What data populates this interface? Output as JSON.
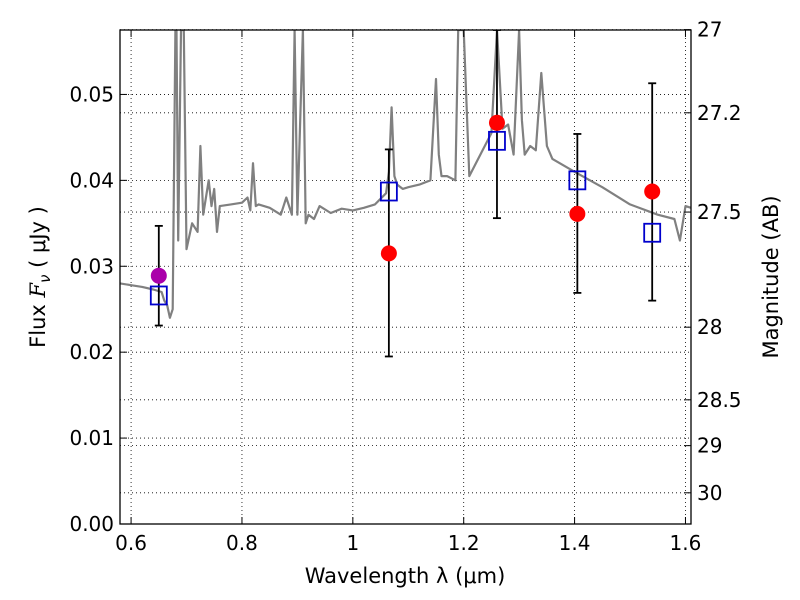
{
  "chart_data": {
    "type": "scatter",
    "title": "",
    "xlabel": "Wavelength  λ (μm)",
    "ylabel": "Flux  F_ν  ( μJy )",
    "ylabel_parts": {
      "prefix": "Flux  ",
      "symbol": "F",
      "sub": "ν",
      "suffix": "  ( μJy )"
    },
    "y2label": "Magnitude (AB)",
    "xlim": [
      0.58,
      1.61
    ],
    "ylim": [
      0.0,
      0.0575
    ],
    "grid": true,
    "x_ticks": [
      {
        "value": 0.6,
        "label": "0.6"
      },
      {
        "value": 0.8,
        "label": "0.8"
      },
      {
        "value": 1.0,
        "label": "1"
      },
      {
        "value": 1.2,
        "label": "1.2"
      },
      {
        "value": 1.4,
        "label": "1.4"
      },
      {
        "value": 1.6,
        "label": "1.6"
      }
    ],
    "y_ticks": [
      {
        "value": 0.0,
        "label": "0.00"
      },
      {
        "value": 0.01,
        "label": "0.01"
      },
      {
        "value": 0.02,
        "label": "0.02"
      },
      {
        "value": 0.03,
        "label": "0.03"
      },
      {
        "value": 0.04,
        "label": "0.04"
      },
      {
        "value": 0.05,
        "label": "0.05"
      }
    ],
    "y2_ticks": [
      {
        "value": 27.0,
        "label": "27"
      },
      {
        "value": 27.2,
        "label": "27.2"
      },
      {
        "value": 27.5,
        "label": "27.5"
      },
      {
        "value": 28.0,
        "label": "28"
      },
      {
        "value": 28.5,
        "label": "28.5"
      },
      {
        "value": 29.0,
        "label": "29"
      },
      {
        "value": 30.0,
        "label": "30"
      }
    ],
    "series": [
      {
        "kind": "spectrum",
        "color": "#808080",
        "x": [
          0.58,
          0.6,
          0.62,
          0.64,
          0.655,
          0.66,
          0.665,
          0.67,
          0.675,
          0.68,
          0.682,
          0.685,
          0.69,
          0.695,
          0.7,
          0.71,
          0.72,
          0.725,
          0.73,
          0.74,
          0.745,
          0.75,
          0.755,
          0.76,
          0.78,
          0.8,
          0.81,
          0.815,
          0.82,
          0.825,
          0.83,
          0.85,
          0.87,
          0.88,
          0.89,
          0.895,
          0.9,
          0.91,
          0.915,
          0.92,
          0.93,
          0.94,
          0.96,
          0.98,
          1.0,
          1.02,
          1.04,
          1.06,
          1.065,
          1.07,
          1.075,
          1.08,
          1.09,
          1.1,
          1.12,
          1.14,
          1.15,
          1.155,
          1.16,
          1.17,
          1.185,
          1.19,
          1.2,
          1.21,
          1.25,
          1.26,
          1.27,
          1.28,
          1.29,
          1.3,
          1.305,
          1.31,
          1.32,
          1.33,
          1.34,
          1.35,
          1.36,
          1.4,
          1.45,
          1.5,
          1.55,
          1.58,
          1.59,
          1.6,
          1.61
        ],
        "y": [
          0.028,
          0.0278,
          0.0276,
          0.0273,
          0.027,
          0.026,
          0.0255,
          0.024,
          0.025,
          0.0575,
          0.0575,
          0.033,
          0.0575,
          0.0575,
          0.032,
          0.035,
          0.034,
          0.044,
          0.036,
          0.04,
          0.037,
          0.039,
          0.034,
          0.037,
          0.0372,
          0.0374,
          0.038,
          0.0365,
          0.042,
          0.037,
          0.0372,
          0.0368,
          0.036,
          0.038,
          0.036,
          0.0575,
          0.036,
          0.0575,
          0.035,
          0.036,
          0.0355,
          0.037,
          0.0362,
          0.0367,
          0.0365,
          0.0368,
          0.0372,
          0.0385,
          0.041,
          0.0485,
          0.0405,
          0.0395,
          0.039,
          0.0392,
          0.0395,
          0.04,
          0.0518,
          0.043,
          0.0405,
          0.0405,
          0.04,
          0.0575,
          0.0575,
          0.0405,
          0.0455,
          0.0575,
          0.046,
          0.0465,
          0.043,
          0.0575,
          0.047,
          0.043,
          0.044,
          0.0435,
          0.0525,
          0.044,
          0.0425,
          0.041,
          0.0392,
          0.0372,
          0.036,
          0.0355,
          0.033,
          0.037,
          0.0368
        ]
      },
      {
        "kind": "model_points",
        "marker": "square",
        "color": "#0000cc",
        "x": [
          0.65,
          1.065,
          1.26,
          1.405,
          1.54
        ],
        "y": [
          0.0266,
          0.0387,
          0.0446,
          0.04,
          0.0339
        ]
      },
      {
        "kind": "observed",
        "marker": "circle",
        "color": "#ff0000",
        "x": [
          1.065,
          1.26,
          1.405,
          1.54
        ],
        "y": [
          0.0315,
          0.0467,
          0.0361,
          0.0387
        ]
      },
      {
        "kind": "observed",
        "marker": "circle",
        "color": "#aa00aa",
        "x": [
          0.65
        ],
        "y": [
          0.0289
        ]
      }
    ],
    "errorbars": [
      {
        "x": 0.65,
        "y": 0.0289,
        "low": 0.0231,
        "high": 0.0347
      },
      {
        "x": 1.065,
        "y": 0.0315,
        "low": 0.0195,
        "high": 0.0436
      },
      {
        "x": 1.26,
        "y": 0.0467,
        "low": 0.0356,
        "high": 0.0575
      },
      {
        "x": 1.405,
        "y": 0.0361,
        "low": 0.0269,
        "high": 0.0454
      },
      {
        "x": 1.54,
        "y": 0.0387,
        "low": 0.026,
        "high": 0.0513
      }
    ]
  }
}
